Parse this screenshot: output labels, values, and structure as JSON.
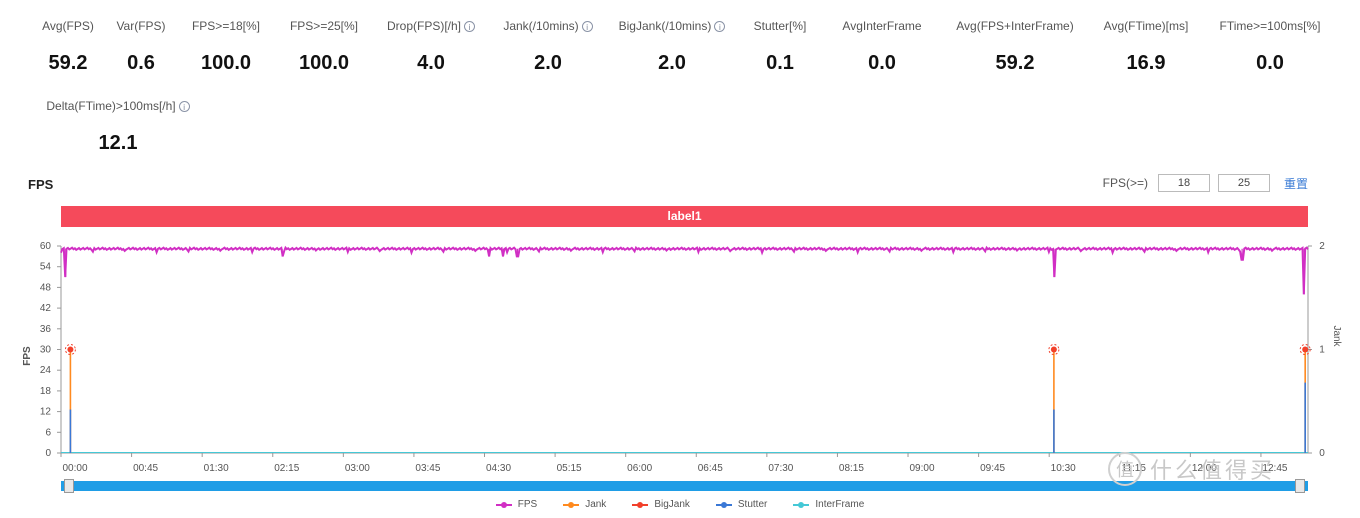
{
  "metrics": [
    {
      "label": "Avg(FPS)",
      "value": "59.2",
      "info": false
    },
    {
      "label": "Var(FPS)",
      "value": "0.6",
      "info": false
    },
    {
      "label": "FPS>=18[%]",
      "value": "100.0",
      "info": false
    },
    {
      "label": "FPS>=25[%]",
      "value": "100.0",
      "info": false
    },
    {
      "label": "Drop(FPS)[/h]",
      "value": "4.0",
      "info": true
    },
    {
      "label": "Jank(/10mins)",
      "value": "2.0",
      "info": true
    },
    {
      "label": "BigJank(/10mins)",
      "value": "2.0",
      "info": true
    },
    {
      "label": "Stutter[%]",
      "value": "0.1",
      "info": false
    },
    {
      "label": "AvgInterFrame",
      "value": "0.0",
      "info": false
    },
    {
      "label": "Avg(FPS+InterFrame)",
      "value": "59.2",
      "info": false
    },
    {
      "label": "Avg(FTime)[ms]",
      "value": "16.9",
      "info": false
    },
    {
      "label": "FTime>=100ms[%]",
      "value": "0.0",
      "info": false
    },
    {
      "label": "Delta(FTime)>100ms[/h]",
      "value": "12.1",
      "info": true
    }
  ],
  "info_glyph": "i",
  "section": {
    "title": "FPS",
    "threshold_label": "FPS(>=)",
    "threshold_values": [
      "18",
      "25"
    ],
    "reset_label": "重置",
    "band_label": "label1"
  },
  "chart_data": {
    "type": "line",
    "title": "FPS",
    "ylabel": "FPS",
    "y2label": "Jank",
    "ylim": [
      0,
      60
    ],
    "y2lim": [
      0,
      2
    ],
    "yticks": [
      0,
      6,
      12,
      18,
      24,
      30,
      36,
      42,
      48,
      54,
      60
    ],
    "y2ticks": [
      0,
      1,
      2
    ],
    "x_ticks": [
      "00:00",
      "00:45",
      "01:30",
      "02:15",
      "03:00",
      "03:45",
      "04:30",
      "05:15",
      "06:00",
      "06:45",
      "07:30",
      "08:15",
      "09:00",
      "09:45",
      "10:30",
      "11:15",
      "12:00",
      "12:45"
    ],
    "x_range_min": [
      0,
      13.25
    ],
    "fps_baseline": 59.2,
    "series": [
      {
        "name": "FPS",
        "color": "#d12fc4",
        "axis": "left",
        "dips": [
          [
            0.05,
            51
          ],
          [
            2.35,
            57
          ],
          [
            4.55,
            57
          ],
          [
            4.7,
            57
          ],
          [
            4.85,
            57
          ],
          [
            10.55,
            51
          ],
          [
            12.55,
            56
          ],
          [
            13.21,
            46
          ]
        ]
      },
      {
        "name": "Jank",
        "color": "#ff8a1f",
        "axis": "right",
        "events": [
          [
            0.1,
            1
          ],
          [
            10.55,
            1
          ],
          [
            13.22,
            1
          ]
        ]
      },
      {
        "name": "BigJank",
        "color": "#f2402a",
        "axis": "right",
        "events": [
          [
            0.1,
            1
          ],
          [
            10.55,
            1
          ],
          [
            13.22,
            1
          ]
        ]
      },
      {
        "name": "Stutter",
        "color": "#3a78d6",
        "axis": "right",
        "events": [
          [
            0.1,
            0.42
          ],
          [
            10.55,
            0.42
          ],
          [
            13.22,
            0.68
          ]
        ]
      },
      {
        "name": "InterFrame",
        "color": "#45c8d6",
        "axis": "right",
        "events": []
      }
    ]
  },
  "watermark": {
    "seal_glyph": "值",
    "text": "什么值得买"
  }
}
